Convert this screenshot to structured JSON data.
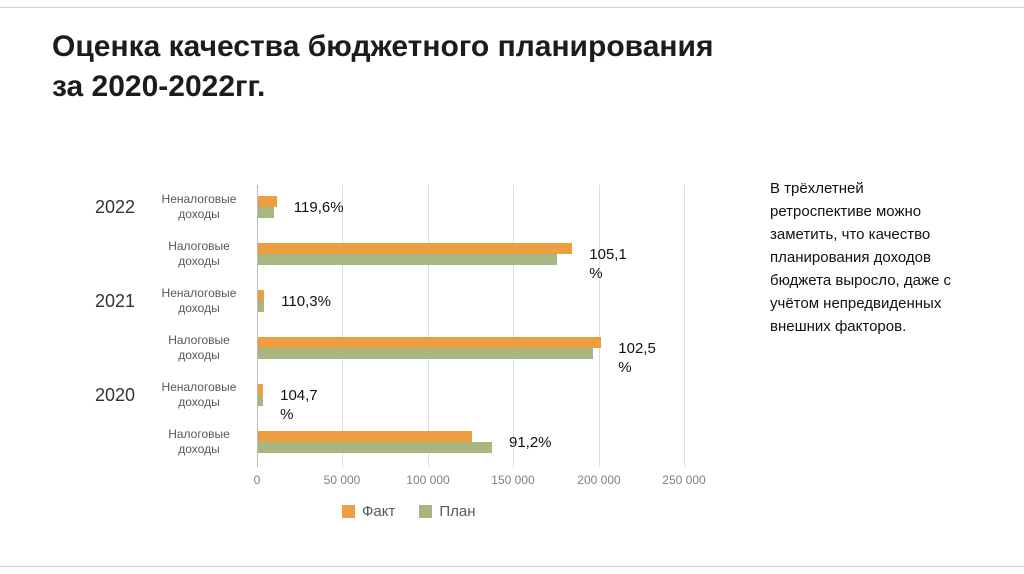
{
  "slide": {
    "title_lines": [
      "Оценка качества бюджетного планирования",
      "за 2020-2022гг."
    ],
    "side_text": "В трёхлетней ретроспективе можно заметить, что качество планирования доходов бюджета выросло, даже с учётом непредвиденных внешних факторов."
  },
  "chart_data": {
    "type": "bar",
    "orientation": "horizontal",
    "title": "Оценка качества бюджетного планирования за 2020-2022гг.",
    "xlabel": "",
    "ylabel": "",
    "xlim": [
      0,
      250000
    ],
    "x_tick_labels": [
      "0",
      "50 000",
      "100 000",
      "150 000",
      "200 000",
      "250 000"
    ],
    "grid": true,
    "legend_position": "bottom",
    "categories": [
      "Неналоговые доходы",
      "Налоговые доходы",
      "Неналоговые доходы",
      "Налоговые доходы",
      "Неналоговые доходы",
      "Налоговые доходы"
    ],
    "year_groups": [
      {
        "year": "2022",
        "row_index": 0
      },
      {
        "year": "2021",
        "row_index": 2
      },
      {
        "year": "2020",
        "row_index": 4
      }
    ],
    "series": [
      {
        "name": "Факт",
        "color": "#ED9E42",
        "values": [
          11000,
          184000,
          3640,
          201000,
          3000,
          125000
        ]
      },
      {
        "name": "План",
        "color": "#A8B780",
        "values": [
          9200,
          175000,
          3300,
          196000,
          2865,
          137000
        ]
      }
    ],
    "data_labels": [
      "119,6%",
      "105,1 %",
      "110,3%",
      "102,5 %",
      "104,7 %",
      "91,2%"
    ]
  }
}
